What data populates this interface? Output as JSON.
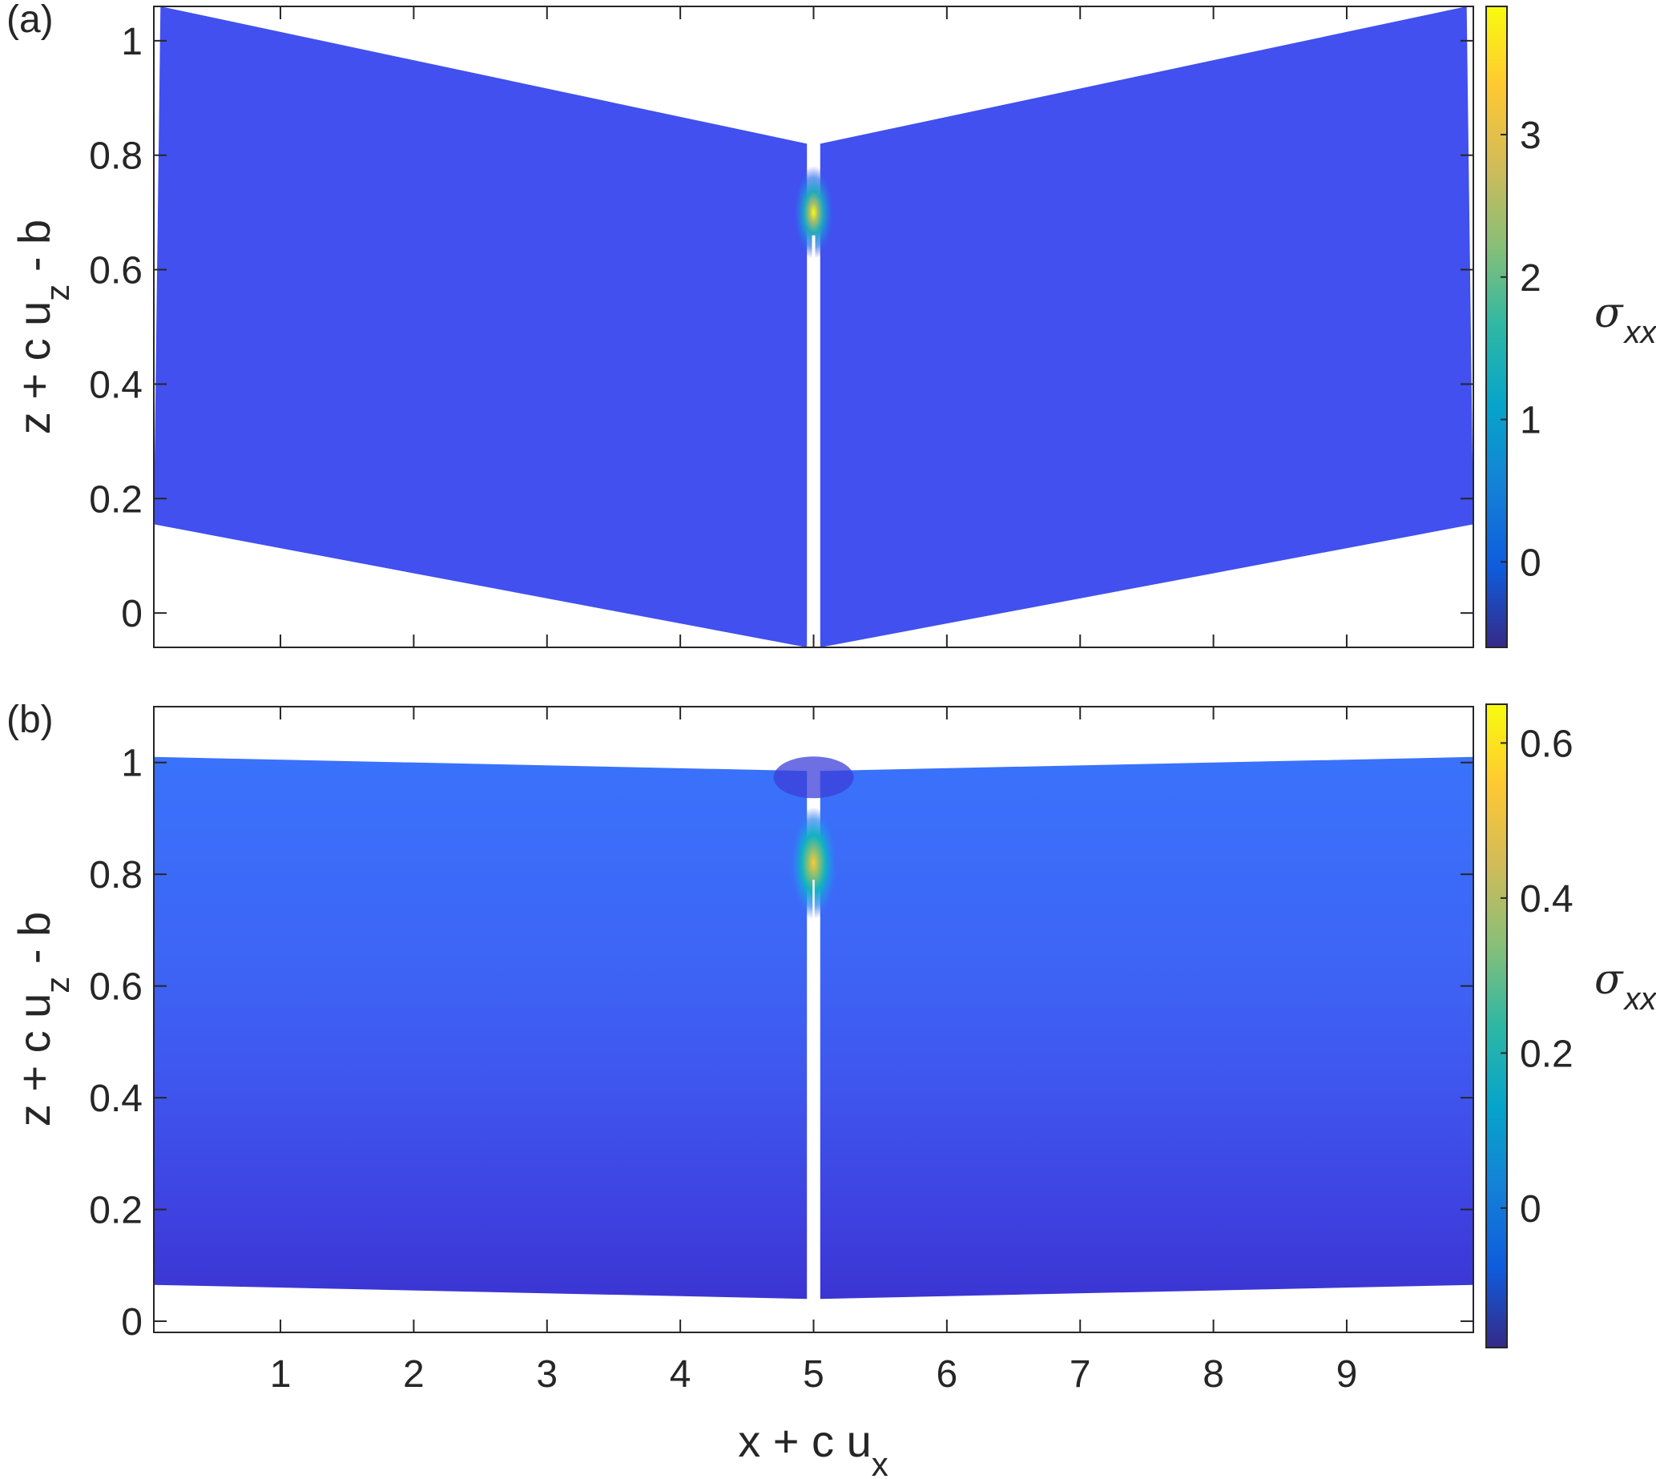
{
  "chart_data": [
    {
      "type": "heatmap",
      "panel_label": "(a)",
      "xlabel": "x + c u",
      "xlabel_sub": "x",
      "ylabel": "z + c u",
      "ylabel_sub": "z",
      "ylabel_tail": " - b",
      "xlim": [
        0.05,
        9.95
      ],
      "ylim": [
        -0.06,
        1.06
      ],
      "x_ticks": [
        1,
        2,
        3,
        4,
        5,
        6,
        7,
        8,
        9
      ],
      "y_ticks": [
        0,
        0.2,
        0.4,
        0.6,
        0.8,
        1
      ],
      "y_tick_labels": [
        "0",
        "0.2",
        "0.4",
        "0.6",
        "0.8",
        "1"
      ],
      "show_x_tick_labels": false,
      "colorbar": {
        "label": "σ",
        "label_sub": "xx",
        "range": [
          -0.6,
          3.9
        ],
        "ticks": [
          0,
          1,
          2,
          3
        ],
        "tick_labels": [
          "0",
          "1",
          "2",
          "3"
        ]
      },
      "domain_left": {
        "top": [
          [
            0.1,
            1.06
          ],
          [
            4.95,
            0.82
          ]
        ],
        "bottom": [
          [
            0.05,
            0.155
          ],
          [
            4.95,
            -0.06
          ]
        ]
      },
      "domain_right": {
        "top": [
          [
            5.05,
            0.82
          ],
          [
            9.9,
            1.06
          ]
        ],
        "bottom": [
          [
            5.05,
            -0.06
          ],
          [
            9.95,
            0.155
          ]
        ]
      },
      "crack": {
        "x": 5.0,
        "z_bottom": -0.06,
        "z_tip": 0.66
      },
      "hotspot": {
        "x": 5.0,
        "z": 0.7,
        "value": 3.9
      },
      "background_value": -0.05
    },
    {
      "type": "heatmap",
      "panel_label": "(b)",
      "xlabel": "x + c u",
      "xlabel_sub": "x",
      "ylabel": "z + c u",
      "ylabel_sub": "z",
      "ylabel_tail": " - b",
      "xlim": [
        0.05,
        9.95
      ],
      "ylim": [
        -0.02,
        1.1
      ],
      "x_ticks": [
        1,
        2,
        3,
        4,
        5,
        6,
        7,
        8,
        9
      ],
      "x_tick_labels": [
        "1",
        "2",
        "3",
        "4",
        "5",
        "6",
        "7",
        "8",
        "9"
      ],
      "y_ticks": [
        0,
        0.2,
        0.4,
        0.6,
        0.8,
        1
      ],
      "y_tick_labels": [
        "0",
        "0.2",
        "0.4",
        "0.6",
        "0.8",
        "1"
      ],
      "show_x_tick_labels": true,
      "colorbar": {
        "label": "σ",
        "label_sub": "xx",
        "range": [
          -0.18,
          0.65
        ],
        "ticks": [
          0,
          0.2,
          0.4,
          0.6
        ],
        "tick_labels": [
          "0",
          "0.2",
          "0.4",
          "0.6"
        ]
      },
      "domain_left": {
        "top": [
          [
            0.05,
            1.01
          ],
          [
            4.95,
            0.985
          ]
        ],
        "bottom": [
          [
            0.05,
            0.065
          ],
          [
            4.95,
            0.04
          ]
        ]
      },
      "domain_right": {
        "top": [
          [
            5.05,
            0.985
          ],
          [
            9.95,
            1.01
          ]
        ],
        "bottom": [
          [
            5.05,
            0.04
          ],
          [
            9.95,
            0.065
          ]
        ]
      },
      "crack": {
        "x": 5.0,
        "z_bottom": 0.04,
        "z_tip": 0.79
      },
      "hotspot": {
        "x": 5.0,
        "z": 0.82,
        "value": 0.65
      },
      "layers_top_value": 0.0,
      "layers_bottom_value": -0.16
    }
  ]
}
